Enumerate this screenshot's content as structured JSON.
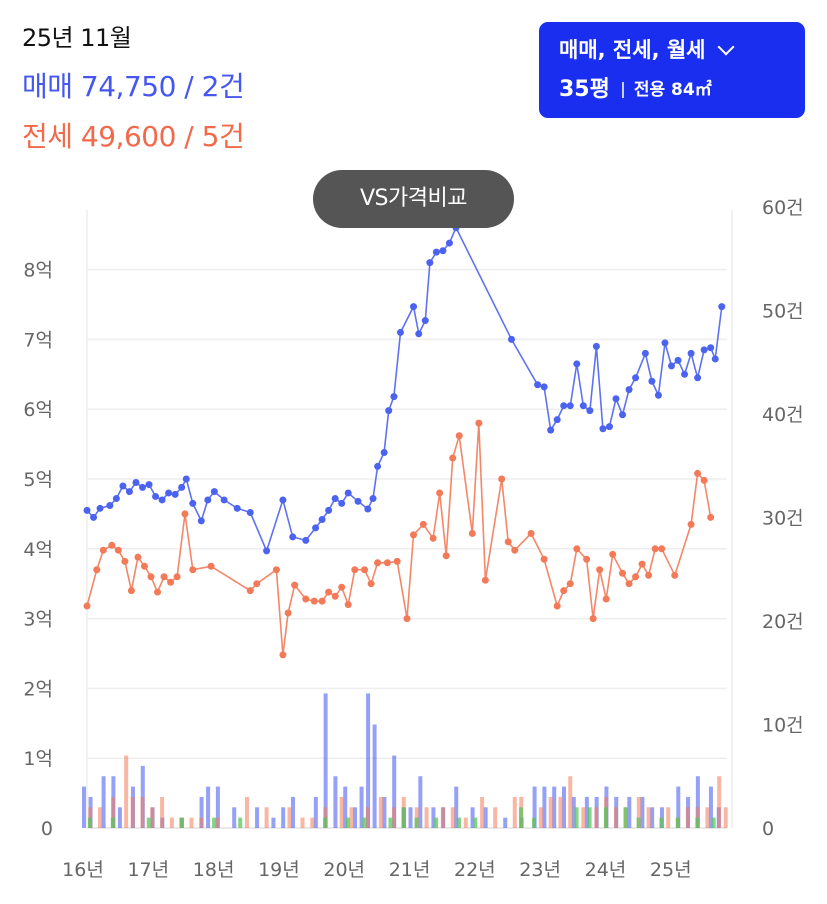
{
  "header": {
    "month": "25년 11월",
    "sale_line": "매매 74,750 / 2건",
    "jeonse_line": "전세 49,600 / 5건"
  },
  "filter": {
    "types_label": "매매, 전세, 월세",
    "size_label": "35평",
    "area_label": "전용 84㎡",
    "icon": "chevron-down-icon"
  },
  "compare_button": {
    "label": "VS가격비교"
  },
  "colors": {
    "sale": "#4c63f0",
    "jeonse": "#f27a58",
    "monthly": "#5cc45c",
    "button": "#1a2ef0",
    "grid": "#eeeeee"
  },
  "chart_data": {
    "type": "line",
    "grid": true,
    "x_ticks": [
      "16년",
      "17년",
      "18년",
      "19년",
      "20년",
      "21년",
      "22년",
      "23년",
      "24년",
      "25년"
    ],
    "x_tick_values": [
      2016,
      2017,
      2018,
      2019,
      2020,
      2021,
      2022,
      2023,
      2024,
      2025
    ],
    "xlim": [
      2016,
      2025.8
    ],
    "y_left_ticks": [
      "0",
      "1억",
      "2억",
      "3억",
      "4억",
      "5억",
      "6억",
      "7억",
      "8억"
    ],
    "y_left_tick_values": [
      0,
      1,
      2,
      3,
      4,
      5,
      6,
      7,
      8
    ],
    "y_left_unit": "억",
    "ylim_left": [
      0,
      8.8
    ],
    "y_right_ticks": [
      "0",
      "10건",
      "20건",
      "30건",
      "40건",
      "50건",
      "60건"
    ],
    "y_right_tick_values": [
      0,
      10,
      20,
      30,
      40,
      50,
      60
    ],
    "ylim_right": [
      0,
      60
    ],
    "series": [
      {
        "key": "sale",
        "kind": "line",
        "points": [
          [
            2016.0,
            4.55
          ],
          [
            2016.1,
            4.45
          ],
          [
            2016.2,
            4.58
          ],
          [
            2016.35,
            4.62
          ],
          [
            2016.45,
            4.72
          ],
          [
            2016.55,
            4.9
          ],
          [
            2016.65,
            4.82
          ],
          [
            2016.75,
            4.95
          ],
          [
            2016.85,
            4.88
          ],
          [
            2016.95,
            4.92
          ],
          [
            2017.05,
            4.75
          ],
          [
            2017.15,
            4.7
          ],
          [
            2017.25,
            4.8
          ],
          [
            2017.35,
            4.78
          ],
          [
            2017.45,
            4.88
          ],
          [
            2017.52,
            5.0
          ],
          [
            2017.62,
            4.65
          ],
          [
            2017.75,
            4.4
          ],
          [
            2017.85,
            4.7
          ],
          [
            2017.95,
            4.82
          ],
          [
            2018.1,
            4.7
          ],
          [
            2018.3,
            4.58
          ],
          [
            2018.5,
            4.52
          ],
          [
            2018.75,
            3.97
          ],
          [
            2019.0,
            4.7
          ],
          [
            2019.15,
            4.17
          ],
          [
            2019.35,
            4.12
          ],
          [
            2019.5,
            4.3
          ],
          [
            2019.6,
            4.42
          ],
          [
            2019.7,
            4.55
          ],
          [
            2019.8,
            4.72
          ],
          [
            2019.9,
            4.65
          ],
          [
            2020.0,
            4.8
          ],
          [
            2020.15,
            4.68
          ],
          [
            2020.3,
            4.57
          ],
          [
            2020.38,
            4.72
          ],
          [
            2020.45,
            5.18
          ],
          [
            2020.55,
            5.38
          ],
          [
            2020.62,
            5.98
          ],
          [
            2020.7,
            6.18
          ],
          [
            2020.8,
            7.1
          ],
          [
            2021.0,
            7.47
          ],
          [
            2021.08,
            7.08
          ],
          [
            2021.18,
            7.27
          ],
          [
            2021.25,
            8.1
          ],
          [
            2021.35,
            8.25
          ],
          [
            2021.45,
            8.27
          ],
          [
            2021.55,
            8.38
          ],
          [
            2021.65,
            8.6
          ],
          [
            2022.5,
            7.0
          ],
          [
            2022.9,
            6.35
          ],
          [
            2023.0,
            6.32
          ],
          [
            2023.1,
            5.7
          ],
          [
            2023.2,
            5.85
          ],
          [
            2023.3,
            6.05
          ],
          [
            2023.4,
            6.05
          ],
          [
            2023.5,
            6.65
          ],
          [
            2023.6,
            6.05
          ],
          [
            2023.7,
            5.98
          ],
          [
            2023.8,
            6.9
          ],
          [
            2023.9,
            5.72
          ],
          [
            2024.0,
            5.75
          ],
          [
            2024.1,
            6.15
          ],
          [
            2024.2,
            5.92
          ],
          [
            2024.3,
            6.28
          ],
          [
            2024.4,
            6.45
          ],
          [
            2024.55,
            6.8
          ],
          [
            2024.65,
            6.4
          ],
          [
            2024.75,
            6.2
          ],
          [
            2024.85,
            6.95
          ],
          [
            2024.95,
            6.62
          ],
          [
            2025.05,
            6.7
          ],
          [
            2025.15,
            6.5
          ],
          [
            2025.25,
            6.8
          ],
          [
            2025.35,
            6.45
          ],
          [
            2025.45,
            6.85
          ],
          [
            2025.55,
            6.88
          ],
          [
            2025.62,
            6.72
          ],
          [
            2025.72,
            7.47
          ]
        ]
      },
      {
        "key": "jeonse",
        "kind": "line",
        "points": [
          [
            2016.0,
            3.18
          ],
          [
            2016.15,
            3.7
          ],
          [
            2016.25,
            3.98
          ],
          [
            2016.38,
            4.05
          ],
          [
            2016.48,
            3.98
          ],
          [
            2016.58,
            3.82
          ],
          [
            2016.68,
            3.4
          ],
          [
            2016.78,
            3.88
          ],
          [
            2016.88,
            3.75
          ],
          [
            2016.98,
            3.6
          ],
          [
            2017.08,
            3.38
          ],
          [
            2017.18,
            3.6
          ],
          [
            2017.28,
            3.52
          ],
          [
            2017.38,
            3.6
          ],
          [
            2017.5,
            4.5
          ],
          [
            2017.62,
            3.7
          ],
          [
            2017.9,
            3.75
          ],
          [
            2018.5,
            3.4
          ],
          [
            2018.6,
            3.5
          ],
          [
            2018.9,
            3.7
          ],
          [
            2019.0,
            2.48
          ],
          [
            2019.08,
            3.08
          ],
          [
            2019.18,
            3.48
          ],
          [
            2019.35,
            3.28
          ],
          [
            2019.48,
            3.25
          ],
          [
            2019.6,
            3.25
          ],
          [
            2019.7,
            3.38
          ],
          [
            2019.8,
            3.32
          ],
          [
            2019.9,
            3.45
          ],
          [
            2020.0,
            3.2
          ],
          [
            2020.1,
            3.7
          ],
          [
            2020.25,
            3.7
          ],
          [
            2020.35,
            3.5
          ],
          [
            2020.45,
            3.8
          ],
          [
            2020.6,
            3.8
          ],
          [
            2020.75,
            3.82
          ],
          [
            2020.9,
            3.0
          ],
          [
            2021.0,
            4.2
          ],
          [
            2021.15,
            4.35
          ],
          [
            2021.3,
            4.15
          ],
          [
            2021.4,
            4.8
          ],
          [
            2021.5,
            3.9
          ],
          [
            2021.6,
            5.3
          ],
          [
            2021.7,
            5.62
          ],
          [
            2021.9,
            4.22
          ],
          [
            2022.0,
            5.8
          ],
          [
            2022.1,
            3.55
          ],
          [
            2022.35,
            5.0
          ],
          [
            2022.45,
            4.1
          ],
          [
            2022.55,
            3.98
          ],
          [
            2022.8,
            4.22
          ],
          [
            2023.0,
            3.85
          ],
          [
            2023.2,
            3.18
          ],
          [
            2023.3,
            3.4
          ],
          [
            2023.4,
            3.5
          ],
          [
            2023.5,
            4.0
          ],
          [
            2023.65,
            3.85
          ],
          [
            2023.75,
            3.0
          ],
          [
            2023.85,
            3.7
          ],
          [
            2023.95,
            3.28
          ],
          [
            2024.05,
            3.92
          ],
          [
            2024.2,
            3.65
          ],
          [
            2024.3,
            3.5
          ],
          [
            2024.4,
            3.6
          ],
          [
            2024.5,
            3.78
          ],
          [
            2024.6,
            3.62
          ],
          [
            2024.7,
            4.0
          ],
          [
            2024.8,
            4.0
          ],
          [
            2025.0,
            3.62
          ],
          [
            2025.25,
            4.35
          ],
          [
            2025.35,
            5.08
          ],
          [
            2025.45,
            4.98
          ],
          [
            2025.55,
            4.45
          ]
        ]
      },
      {
        "key": "sale_volume",
        "kind": "bar",
        "axis": "right",
        "values": [
          [
            2016.0,
            4
          ],
          [
            2016.1,
            3
          ],
          [
            2016.3,
            5
          ],
          [
            2016.45,
            5
          ],
          [
            2016.55,
            2
          ],
          [
            2016.75,
            4
          ],
          [
            2016.9,
            6
          ],
          [
            2017.05,
            2
          ],
          [
            2017.2,
            1
          ],
          [
            2017.5,
            1
          ],
          [
            2017.8,
            3
          ],
          [
            2017.9,
            4
          ],
          [
            2018.05,
            4
          ],
          [
            2018.3,
            2
          ],
          [
            2018.65,
            2
          ],
          [
            2018.9,
            1
          ],
          [
            2019.05,
            2
          ],
          [
            2019.2,
            3
          ],
          [
            2019.55,
            3
          ],
          [
            2019.7,
            13
          ],
          [
            2019.85,
            5
          ],
          [
            2020.0,
            4
          ],
          [
            2020.15,
            2
          ],
          [
            2020.25,
            4
          ],
          [
            2020.35,
            13
          ],
          [
            2020.45,
            10
          ],
          [
            2020.6,
            3
          ],
          [
            2020.75,
            7
          ],
          [
            2020.9,
            2
          ],
          [
            2021.0,
            2
          ],
          [
            2021.15,
            5
          ],
          [
            2021.35,
            2
          ],
          [
            2021.5,
            2
          ],
          [
            2021.7,
            4
          ],
          [
            2021.95,
            2
          ],
          [
            2022.15,
            2
          ],
          [
            2022.45,
            1
          ],
          [
            2022.7,
            1
          ],
          [
            2022.9,
            4
          ],
          [
            2023.05,
            4
          ],
          [
            2023.2,
            4
          ],
          [
            2023.35,
            4
          ],
          [
            2023.5,
            3
          ],
          [
            2023.7,
            3
          ],
          [
            2023.85,
            3
          ],
          [
            2024.0,
            4
          ],
          [
            2024.15,
            3
          ],
          [
            2024.35,
            3
          ],
          [
            2024.55,
            3
          ],
          [
            2024.7,
            2
          ],
          [
            2024.85,
            2
          ],
          [
            2025.1,
            4
          ],
          [
            2025.25,
            3
          ],
          [
            2025.4,
            5
          ],
          [
            2025.6,
            4
          ],
          [
            2025.72,
            2
          ]
        ]
      },
      {
        "key": "jeonse_volume",
        "kind": "bar",
        "axis": "right",
        "values": [
          [
            2016.05,
            2
          ],
          [
            2016.2,
            2
          ],
          [
            2016.4,
            3
          ],
          [
            2016.6,
            7
          ],
          [
            2016.7,
            3
          ],
          [
            2016.85,
            3
          ],
          [
            2017.0,
            2
          ],
          [
            2017.15,
            3
          ],
          [
            2017.3,
            1
          ],
          [
            2017.45,
            1
          ],
          [
            2017.6,
            1
          ],
          [
            2017.75,
            1
          ],
          [
            2018.0,
            1
          ],
          [
            2018.45,
            3
          ],
          [
            2018.75,
            2
          ],
          [
            2019.1,
            2
          ],
          [
            2019.3,
            1
          ],
          [
            2019.45,
            1
          ],
          [
            2019.65,
            2
          ],
          [
            2019.9,
            3
          ],
          [
            2020.05,
            2
          ],
          [
            2020.3,
            2
          ],
          [
            2020.5,
            3
          ],
          [
            2020.7,
            2
          ],
          [
            2020.85,
            3
          ],
          [
            2021.05,
            2
          ],
          [
            2021.2,
            2
          ],
          [
            2021.45,
            2
          ],
          [
            2021.6,
            2
          ],
          [
            2021.8,
            1
          ],
          [
            2022.05,
            3
          ],
          [
            2022.25,
            2
          ],
          [
            2022.55,
            3
          ],
          [
            2022.65,
            3
          ],
          [
            2022.95,
            2
          ],
          [
            2023.1,
            3
          ],
          [
            2023.25,
            3
          ],
          [
            2023.4,
            5
          ],
          [
            2023.6,
            2
          ],
          [
            2023.8,
            2
          ],
          [
            2023.95,
            3
          ],
          [
            2024.1,
            2
          ],
          [
            2024.25,
            2
          ],
          [
            2024.45,
            3
          ],
          [
            2024.6,
            2
          ],
          [
            2024.9,
            2
          ],
          [
            2025.05,
            1
          ],
          [
            2025.2,
            2
          ],
          [
            2025.35,
            2
          ],
          [
            2025.5,
            2
          ],
          [
            2025.68,
            5
          ],
          [
            2025.78,
            2
          ]
        ]
      },
      {
        "key": "monthly_volume",
        "kind": "bar",
        "axis": "right",
        "values": [
          [
            2016.0,
            1
          ],
          [
            2016.35,
            1
          ],
          [
            2016.9,
            1
          ],
          [
            2017.4,
            1
          ],
          [
            2017.9,
            1
          ],
          [
            2018.3,
            1
          ],
          [
            2019.6,
            1
          ],
          [
            2019.95,
            1
          ],
          [
            2020.2,
            1
          ],
          [
            2020.6,
            1
          ],
          [
            2020.8,
            2
          ],
          [
            2021.0,
            1
          ],
          [
            2021.3,
            1
          ],
          [
            2021.65,
            1
          ],
          [
            2021.9,
            1
          ],
          [
            2022.6,
            2
          ],
          [
            2022.8,
            1
          ],
          [
            2023.45,
            2
          ],
          [
            2023.65,
            2
          ],
          [
            2023.9,
            2
          ],
          [
            2024.2,
            2
          ],
          [
            2024.4,
            1
          ],
          [
            2024.75,
            1
          ],
          [
            2025.0,
            1
          ],
          [
            2025.3,
            1
          ],
          [
            2025.55,
            1
          ]
        ]
      }
    ]
  }
}
